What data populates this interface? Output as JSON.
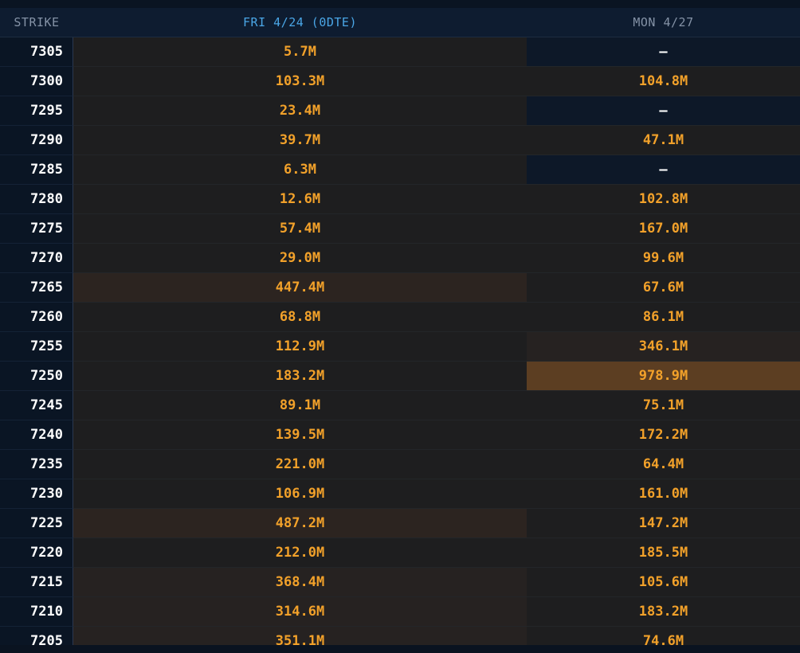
{
  "table": {
    "headers": {
      "strike": "STRIKE",
      "fri": "FRI 4/24 (0DTE)",
      "mon": "MON 4/27"
    },
    "colors": {
      "value_text": "#f2a12a",
      "empty_text": "#ffffff",
      "cell_base": "#1e1e1f",
      "cell_empty": "#0d1828",
      "heat_high": "#5c3e22",
      "heat_mid": "#2c2420",
      "heat_low": "#262221"
    },
    "rows": [
      {
        "strike": "7305",
        "fri": "5.7M",
        "mon": "—"
      },
      {
        "strike": "7300",
        "fri": "103.3M",
        "mon": "104.8M"
      },
      {
        "strike": "7295",
        "fri": "23.4M",
        "mon": "—"
      },
      {
        "strike": "7290",
        "fri": "39.7M",
        "mon": "47.1M"
      },
      {
        "strike": "7285",
        "fri": "6.3M",
        "mon": "—"
      },
      {
        "strike": "7280",
        "fri": "12.6M",
        "mon": "102.8M"
      },
      {
        "strike": "7275",
        "fri": "57.4M",
        "mon": "167.0M"
      },
      {
        "strike": "7270",
        "fri": "29.0M",
        "mon": "99.6M"
      },
      {
        "strike": "7265",
        "fri": "447.4M",
        "mon": "67.6M"
      },
      {
        "strike": "7260",
        "fri": "68.8M",
        "mon": "86.1M"
      },
      {
        "strike": "7255",
        "fri": "112.9M",
        "mon": "346.1M"
      },
      {
        "strike": "7250",
        "fri": "183.2M",
        "mon": "978.9M"
      },
      {
        "strike": "7245",
        "fri": "89.1M",
        "mon": "75.1M"
      },
      {
        "strike": "7240",
        "fri": "139.5M",
        "mon": "172.2M"
      },
      {
        "strike": "7235",
        "fri": "221.0M",
        "mon": "64.4M"
      },
      {
        "strike": "7230",
        "fri": "106.9M",
        "mon": "161.0M"
      },
      {
        "strike": "7225",
        "fri": "487.2M",
        "mon": "147.2M"
      },
      {
        "strike": "7220",
        "fri": "212.0M",
        "mon": "185.5M"
      },
      {
        "strike": "7215",
        "fri": "368.4M",
        "mon": "105.6M"
      },
      {
        "strike": "7210",
        "fri": "314.6M",
        "mon": "183.2M"
      },
      {
        "strike": "7205",
        "fri": "351.1M",
        "mon": "74.6M"
      }
    ]
  }
}
